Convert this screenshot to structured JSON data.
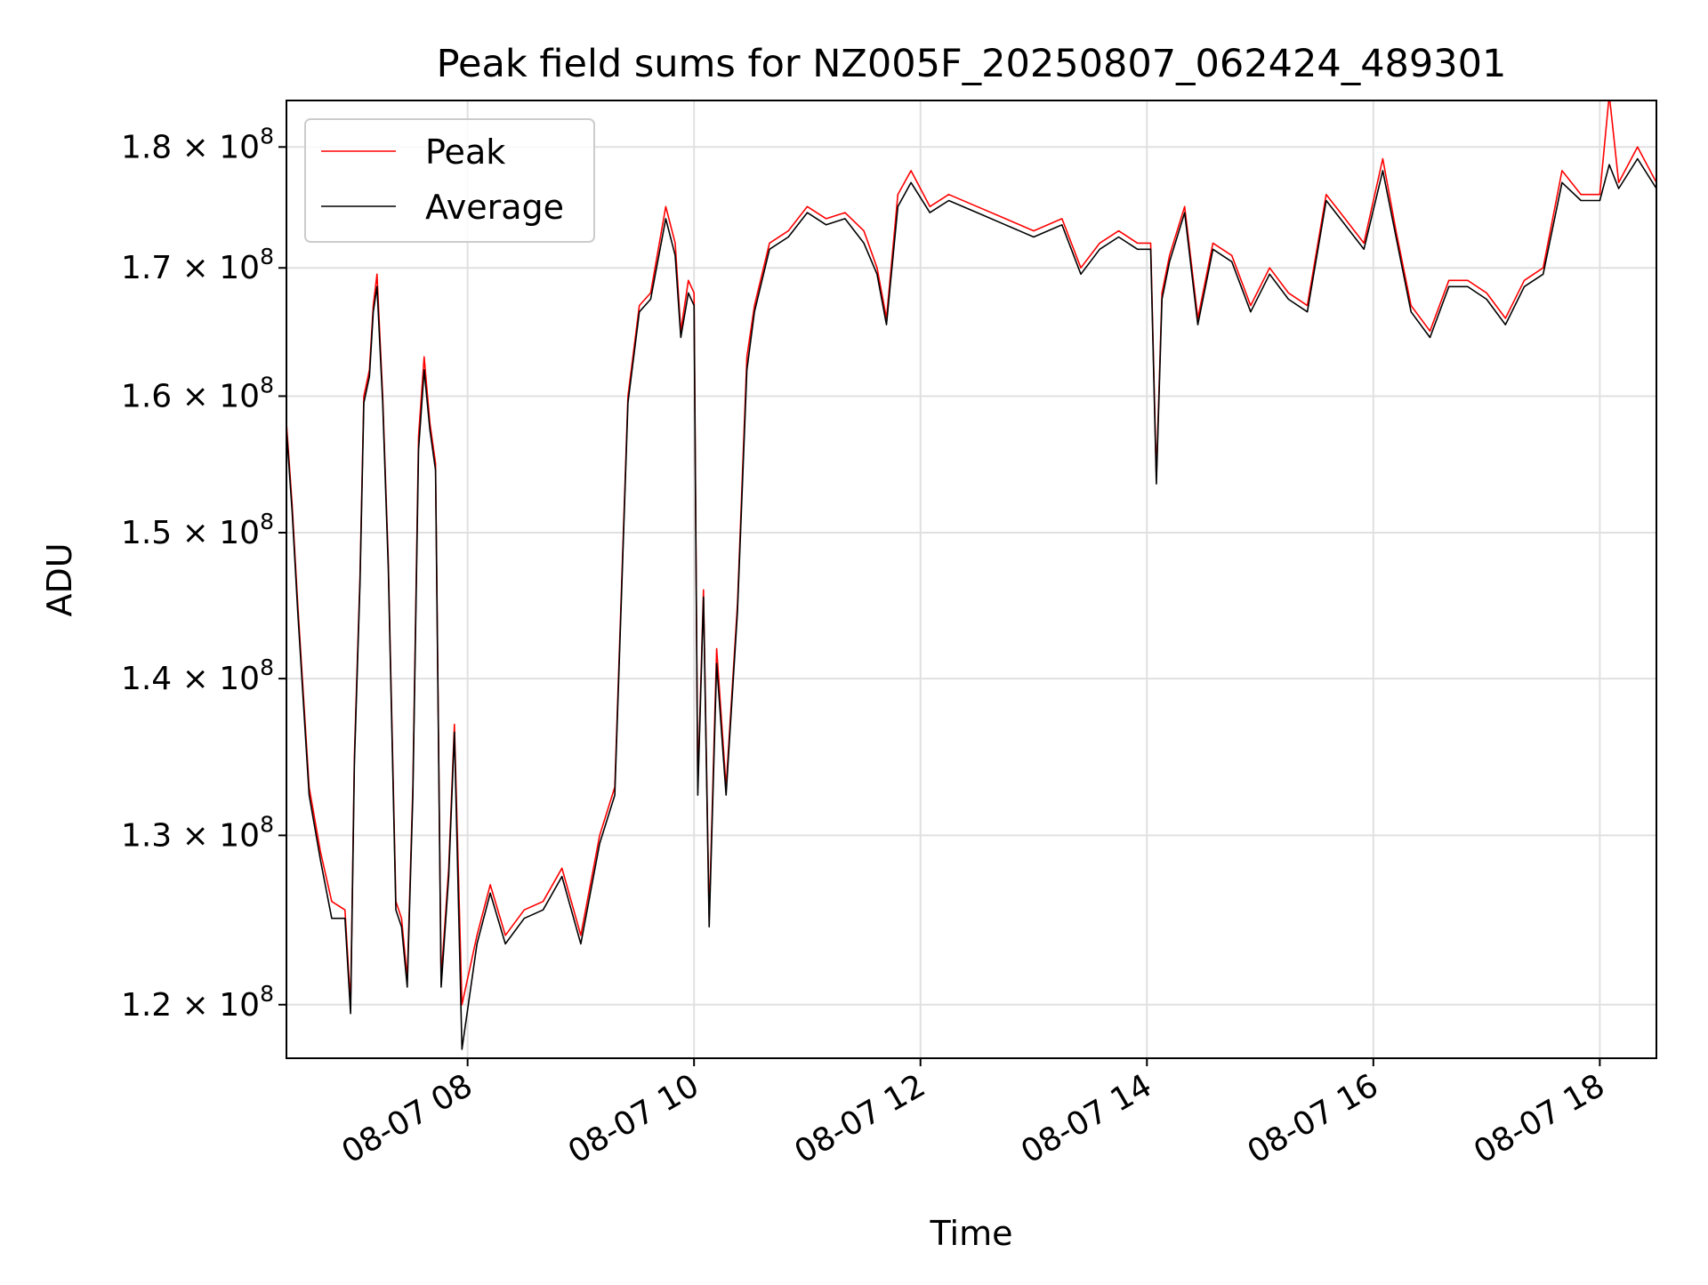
{
  "chart_data": {
    "type": "line",
    "title": "Peak field sums for NZ005F_20250807_062424_489301",
    "xlabel": "Time",
    "ylabel": "ADU",
    "yscale": "log",
    "grid": true,
    "legend_position": "upper-left",
    "xlim": [
      "2025-08-07 06:24",
      "2025-08-07 18:30"
    ],
    "ylim": [
      117000000,
      184000000
    ],
    "x_ticks": [
      {
        "value": "2025-08-07 08:00",
        "label": "08-07 08"
      },
      {
        "value": "2025-08-07 10:00",
        "label": "08-07 10"
      },
      {
        "value": "2025-08-07 12:00",
        "label": "08-07 12"
      },
      {
        "value": "2025-08-07 14:00",
        "label": "08-07 14"
      },
      {
        "value": "2025-08-07 16:00",
        "label": "08-07 16"
      },
      {
        "value": "2025-08-07 18:00",
        "label": "08-07 18"
      }
    ],
    "y_ticks": [
      {
        "value": 120000000,
        "mantissa": "1.2",
        "base": "10",
        "exp": "8"
      },
      {
        "value": 130000000,
        "mantissa": "1.3",
        "base": "10",
        "exp": "8"
      },
      {
        "value": 140000000,
        "mantissa": "1.4",
        "base": "10",
        "exp": "8"
      },
      {
        "value": 150000000,
        "mantissa": "1.5",
        "base": "10",
        "exp": "8"
      },
      {
        "value": 160000000,
        "mantissa": "1.6",
        "base": "10",
        "exp": "8"
      },
      {
        "value": 170000000,
        "mantissa": "1.7",
        "base": "10",
        "exp": "8"
      },
      {
        "value": 180000000,
        "mantissa": "1.8",
        "base": "10",
        "exp": "8"
      }
    ],
    "series": [
      {
        "name": "Peak",
        "color": "#ff0000",
        "x": [
          "2025-08-07 06:24",
          "2025-08-07 06:27",
          "2025-08-07 06:30",
          "2025-08-07 06:36",
          "2025-08-07 06:42",
          "2025-08-07 06:48",
          "2025-08-07 06:55",
          "2025-08-07 06:58",
          "2025-08-07 07:00",
          "2025-08-07 07:03",
          "2025-08-07 07:05",
          "2025-08-07 07:08",
          "2025-08-07 07:10",
          "2025-08-07 07:12",
          "2025-08-07 07:15",
          "2025-08-07 07:18",
          "2025-08-07 07:22",
          "2025-08-07 07:25",
          "2025-08-07 07:28",
          "2025-08-07 07:31",
          "2025-08-07 07:34",
          "2025-08-07 07:37",
          "2025-08-07 07:40",
          "2025-08-07 07:43",
          "2025-08-07 07:46",
          "2025-08-07 07:50",
          "2025-08-07 07:53",
          "2025-08-07 07:57",
          "2025-08-07 08:05",
          "2025-08-07 08:12",
          "2025-08-07 08:20",
          "2025-08-07 08:30",
          "2025-08-07 08:40",
          "2025-08-07 08:50",
          "2025-08-07 09:00",
          "2025-08-07 09:10",
          "2025-08-07 09:18",
          "2025-08-07 09:25",
          "2025-08-07 09:31",
          "2025-08-07 09:37",
          "2025-08-07 09:45",
          "2025-08-07 09:50",
          "2025-08-07 09:53",
          "2025-08-07 09:57",
          "2025-08-07 10:00",
          "2025-08-07 10:02",
          "2025-08-07 10:05",
          "2025-08-07 10:08",
          "2025-08-07 10:12",
          "2025-08-07 10:17",
          "2025-08-07 10:23",
          "2025-08-07 10:28",
          "2025-08-07 10:32",
          "2025-08-07 10:40",
          "2025-08-07 10:50",
          "2025-08-07 11:00",
          "2025-08-07 11:10",
          "2025-08-07 11:20",
          "2025-08-07 11:30",
          "2025-08-07 11:37",
          "2025-08-07 11:42",
          "2025-08-07 11:48",
          "2025-08-07 11:55",
          "2025-08-07 12:05",
          "2025-08-07 12:15",
          "2025-08-07 12:30",
          "2025-08-07 12:45",
          "2025-08-07 13:00",
          "2025-08-07 13:15",
          "2025-08-07 13:25",
          "2025-08-07 13:35",
          "2025-08-07 13:45",
          "2025-08-07 13:55",
          "2025-08-07 14:02",
          "2025-08-07 14:05",
          "2025-08-07 14:08",
          "2025-08-07 14:12",
          "2025-08-07 14:20",
          "2025-08-07 14:27",
          "2025-08-07 14:35",
          "2025-08-07 14:45",
          "2025-08-07 14:55",
          "2025-08-07 15:05",
          "2025-08-07 15:15",
          "2025-08-07 15:25",
          "2025-08-07 15:35",
          "2025-08-07 15:45",
          "2025-08-07 15:55",
          "2025-08-07 16:05",
          "2025-08-07 16:12",
          "2025-08-07 16:20",
          "2025-08-07 16:30",
          "2025-08-07 16:40",
          "2025-08-07 16:50",
          "2025-08-07 17:00",
          "2025-08-07 17:10",
          "2025-08-07 17:20",
          "2025-08-07 17:30",
          "2025-08-07 17:40",
          "2025-08-07 17:50",
          "2025-08-07 18:00",
          "2025-08-07 18:05",
          "2025-08-07 18:10",
          "2025-08-07 18:20",
          "2025-08-07 18:30"
        ],
        "values": [
          158000000,
          152000000,
          145000000,
          133000000,
          129000000,
          126000000,
          125500000,
          120000000,
          135000000,
          147000000,
          160000000,
          162000000,
          167000000,
          169500000,
          160000000,
          148000000,
          126000000,
          125000000,
          121500000,
          133000000,
          157000000,
          163000000,
          158000000,
          155000000,
          121500000,
          128000000,
          137000000,
          120000000,
          124000000,
          127000000,
          124000000,
          125500000,
          126000000,
          128000000,
          124000000,
          130000000,
          133000000,
          160000000,
          167000000,
          168000000,
          175000000,
          172000000,
          165000000,
          169000000,
          168000000,
          133000000,
          146000000,
          125000000,
          142000000,
          133000000,
          145000000,
          163000000,
          167000000,
          172000000,
          173000000,
          175000000,
          174000000,
          174500000,
          173000000,
          170000000,
          166000000,
          176000000,
          178000000,
          175000000,
          176000000,
          175000000,
          174000000,
          173000000,
          174000000,
          170000000,
          172000000,
          173000000,
          172000000,
          172000000,
          154000000,
          168000000,
          171000000,
          175000000,
          166000000,
          172000000,
          171000000,
          167000000,
          170000000,
          168000000,
          167000000,
          176000000,
          174000000,
          172000000,
          179000000,
          173000000,
          167000000,
          165000000,
          169000000,
          169000000,
          168000000,
          166000000,
          169000000,
          170000000,
          178000000,
          176000000,
          176000000,
          184500000,
          177000000,
          180000000,
          177000000
        ]
      },
      {
        "name": "Average",
        "color": "#000000",
        "x": [
          "2025-08-07 06:24",
          "2025-08-07 06:27",
          "2025-08-07 06:30",
          "2025-08-07 06:36",
          "2025-08-07 06:42",
          "2025-08-07 06:48",
          "2025-08-07 06:55",
          "2025-08-07 06:58",
          "2025-08-07 07:00",
          "2025-08-07 07:03",
          "2025-08-07 07:05",
          "2025-08-07 07:08",
          "2025-08-07 07:10",
          "2025-08-07 07:12",
          "2025-08-07 07:15",
          "2025-08-07 07:18",
          "2025-08-07 07:22",
          "2025-08-07 07:25",
          "2025-08-07 07:28",
          "2025-08-07 07:31",
          "2025-08-07 07:34",
          "2025-08-07 07:37",
          "2025-08-07 07:40",
          "2025-08-07 07:43",
          "2025-08-07 07:46",
          "2025-08-07 07:50",
          "2025-08-07 07:53",
          "2025-08-07 07:57",
          "2025-08-07 08:05",
          "2025-08-07 08:12",
          "2025-08-07 08:20",
          "2025-08-07 08:30",
          "2025-08-07 08:40",
          "2025-08-07 08:50",
          "2025-08-07 09:00",
          "2025-08-07 09:10",
          "2025-08-07 09:18",
          "2025-08-07 09:25",
          "2025-08-07 09:31",
          "2025-08-07 09:37",
          "2025-08-07 09:45",
          "2025-08-07 09:50",
          "2025-08-07 09:53",
          "2025-08-07 09:57",
          "2025-08-07 10:00",
          "2025-08-07 10:02",
          "2025-08-07 10:05",
          "2025-08-07 10:08",
          "2025-08-07 10:12",
          "2025-08-07 10:17",
          "2025-08-07 10:23",
          "2025-08-07 10:28",
          "2025-08-07 10:32",
          "2025-08-07 10:40",
          "2025-08-07 10:50",
          "2025-08-07 11:00",
          "2025-08-07 11:10",
          "2025-08-07 11:20",
          "2025-08-07 11:30",
          "2025-08-07 11:37",
          "2025-08-07 11:42",
          "2025-08-07 11:48",
          "2025-08-07 11:55",
          "2025-08-07 12:05",
          "2025-08-07 12:15",
          "2025-08-07 12:30",
          "2025-08-07 12:45",
          "2025-08-07 13:00",
          "2025-08-07 13:15",
          "2025-08-07 13:25",
          "2025-08-07 13:35",
          "2025-08-07 13:45",
          "2025-08-07 13:55",
          "2025-08-07 14:02",
          "2025-08-07 14:05",
          "2025-08-07 14:08",
          "2025-08-07 14:12",
          "2025-08-07 14:20",
          "2025-08-07 14:27",
          "2025-08-07 14:35",
          "2025-08-07 14:45",
          "2025-08-07 14:55",
          "2025-08-07 15:05",
          "2025-08-07 15:15",
          "2025-08-07 15:25",
          "2025-08-07 15:35",
          "2025-08-07 15:45",
          "2025-08-07 15:55",
          "2025-08-07 16:05",
          "2025-08-07 16:12",
          "2025-08-07 16:20",
          "2025-08-07 16:30",
          "2025-08-07 16:40",
          "2025-08-07 16:50",
          "2025-08-07 17:00",
          "2025-08-07 17:10",
          "2025-08-07 17:20",
          "2025-08-07 17:30",
          "2025-08-07 17:40",
          "2025-08-07 17:50",
          "2025-08-07 18:00",
          "2025-08-07 18:05",
          "2025-08-07 18:10",
          "2025-08-07 18:20",
          "2025-08-07 18:30"
        ],
        "values": [
          157500000,
          151500000,
          144500000,
          132500000,
          128500000,
          125000000,
          125000000,
          119500000,
          134500000,
          146500000,
          159500000,
          161500000,
          166500000,
          168500000,
          159500000,
          147500000,
          125500000,
          124500000,
          121000000,
          132500000,
          156000000,
          162000000,
          157500000,
          154500000,
          121000000,
          127500000,
          136500000,
          117500000,
          123500000,
          126500000,
          123500000,
          125000000,
          125500000,
          127500000,
          123500000,
          129500000,
          132500000,
          159500000,
          166500000,
          167500000,
          174000000,
          171000000,
          164500000,
          168000000,
          167000000,
          132500000,
          145500000,
          124500000,
          141000000,
          132500000,
          144500000,
          162000000,
          166500000,
          171500000,
          172500000,
          174500000,
          173500000,
          174000000,
          172000000,
          169500000,
          165500000,
          175000000,
          177000000,
          174500000,
          175500000,
          174500000,
          173500000,
          172500000,
          173500000,
          169500000,
          171500000,
          172500000,
          171500000,
          171500000,
          153500000,
          167500000,
          170500000,
          174500000,
          165500000,
          171500000,
          170500000,
          166500000,
          169500000,
          167500000,
          166500000,
          175500000,
          173500000,
          171500000,
          178000000,
          172500000,
          166500000,
          164500000,
          168500000,
          168500000,
          167500000,
          165500000,
          168500000,
          169500000,
          177000000,
          175500000,
          175500000,
          178500000,
          176500000,
          179000000,
          176500000
        ]
      }
    ]
  }
}
